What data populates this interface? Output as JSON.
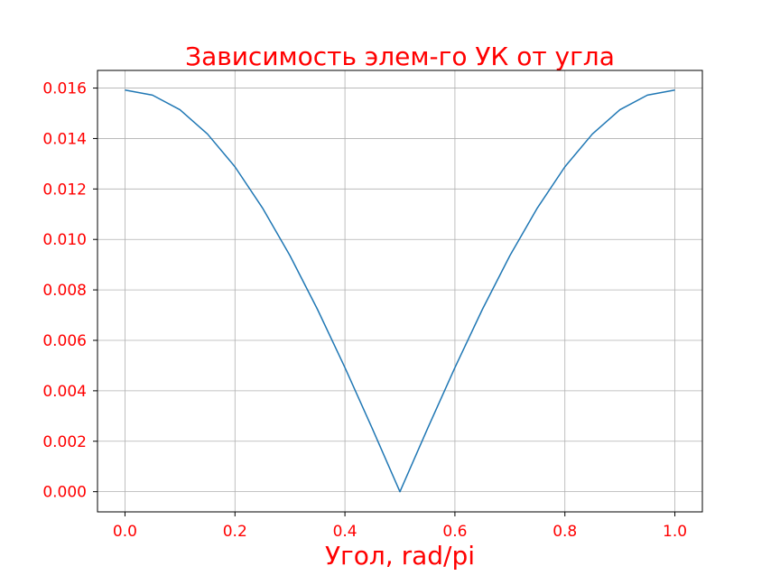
{
  "chart_data": {
    "type": "line",
    "title": "Зависимость  элем-го УК от угла",
    "xlabel": "Угол, rad/pi",
    "ylabel": "",
    "xlim": [
      -0.05,
      1.05
    ],
    "ylim": [
      -0.0008,
      0.0167
    ],
    "xticks": [
      0.0,
      0.2,
      0.4,
      0.6,
      0.8,
      1.0
    ],
    "xtick_labels": [
      "0.0",
      "0.2",
      "0.4",
      "0.6",
      "0.8",
      "1.0"
    ],
    "yticks": [
      0.0,
      0.002,
      0.004,
      0.006,
      0.008,
      0.01,
      0.012,
      0.014,
      0.016
    ],
    "ytick_labels": [
      "0.000",
      "0.002",
      "0.004",
      "0.006",
      "0.008",
      "0.010",
      "0.012",
      "0.014",
      "0.016"
    ],
    "grid": true,
    "colors": {
      "text": "#ff0000",
      "line": "#1f77b4",
      "grid": "#b0b0b0",
      "axes": "#000000"
    },
    "series": [
      {
        "x": [
          0.0,
          0.05,
          0.1,
          0.15,
          0.2,
          0.25,
          0.3,
          0.35,
          0.4,
          0.45,
          0.5,
          0.55,
          0.6,
          0.65,
          0.7,
          0.75,
          0.8,
          0.85,
          0.9,
          0.95,
          1.0
        ],
        "values": [
          0.01592,
          0.01572,
          0.01514,
          0.01418,
          0.01288,
          0.01125,
          0.00936,
          0.00723,
          0.00492,
          0.00249,
          0.0,
          0.00249,
          0.00492,
          0.00723,
          0.00936,
          0.01125,
          0.01288,
          0.01418,
          0.01514,
          0.01572,
          0.01592
        ]
      }
    ]
  }
}
